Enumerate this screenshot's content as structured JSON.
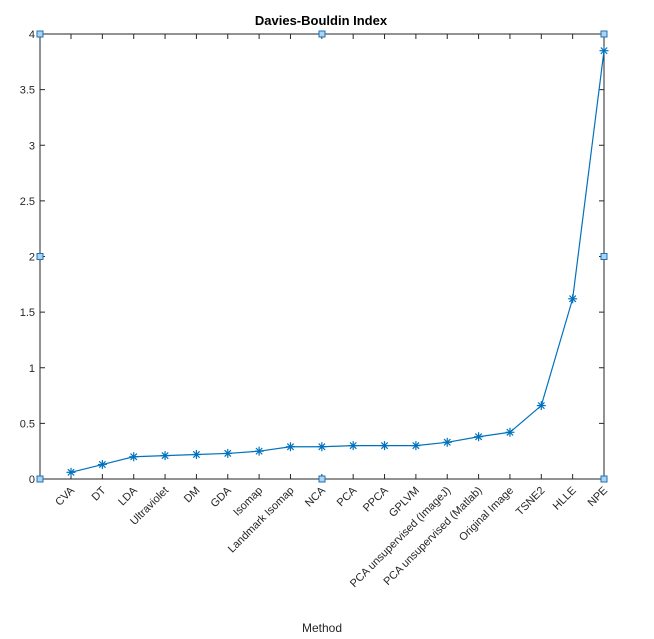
{
  "chart_data": {
    "type": "line",
    "title": "Davies-Bouldin Index",
    "xlabel": "Method",
    "ylabel": "",
    "categories": [
      "CVA",
      "DT",
      "LDA",
      "Ultraviolet",
      "DM",
      "GDA",
      "Isomap",
      "Landmark Isomap",
      "NCA",
      "PCA",
      "PPCA",
      "GPLVM",
      "PCA unsupervised (ImageJ)",
      "PCA unsupervised (Matlab)",
      "Original Image",
      "TSNE2",
      "HLLE",
      "NPE"
    ],
    "series": [
      {
        "values": [
          0.06,
          0.13,
          0.2,
          0.21,
          0.22,
          0.23,
          0.25,
          0.29,
          0.29,
          0.3,
          0.3,
          0.3,
          0.33,
          0.38,
          0.42,
          0.66,
          1.62,
          3.85
        ],
        "color": "#0072bd",
        "marker": "asterisk"
      }
    ],
    "yticks": [
      "0",
      "0.5",
      "1",
      "1.5",
      "2",
      "2.5",
      "3",
      "3.5",
      "4"
    ],
    "ylim": [
      0,
      4
    ],
    "grid": false,
    "box": true
  }
}
